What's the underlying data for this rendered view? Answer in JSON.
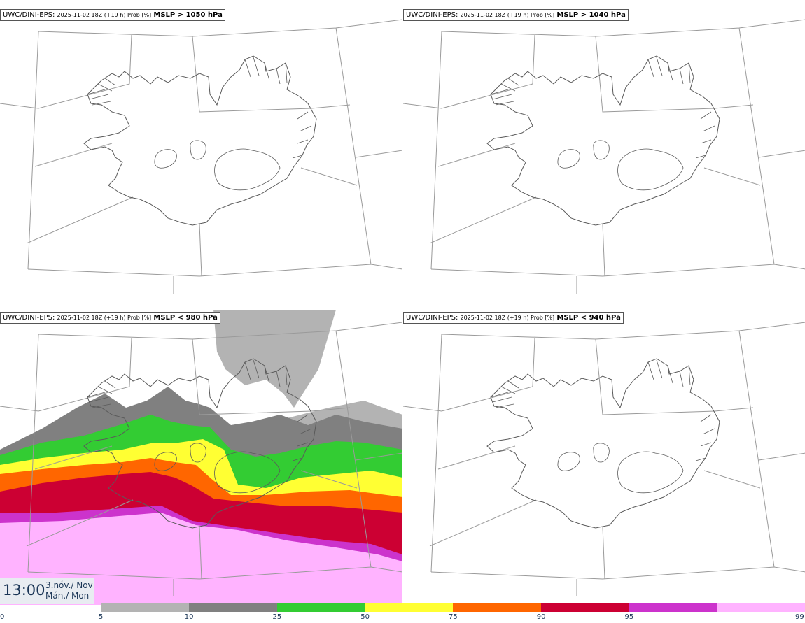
{
  "panels": [
    {
      "model": "UWC/DINI-EPS:",
      "run": "2025-11-02 18Z (+19 h) Prob [%]",
      "field": "MSLP > 1050 hPa"
    },
    {
      "model": "UWC/DINI-EPS:",
      "run": "2025-11-02 18Z (+19 h) Prob [%]",
      "field": "MSLP > 1040 hPa"
    },
    {
      "model": "UWC/DINI-EPS:",
      "run": "2025-11-02 18Z (+19 h) Prob [%]",
      "field": "MSLP < 980 hPa"
    },
    {
      "model": "UWC/DINI-EPS:",
      "run": "2025-11-02 18Z (+19 h) Prob [%]",
      "field": "MSLP < 940 hPa"
    }
  ],
  "valid_time": {
    "time": "13:00",
    "date_line1": "3.nóv./ Nov",
    "date_line2": "Mán./ Mon"
  },
  "colorbar": {
    "ticks": [
      "0",
      "5",
      "10",
      "25",
      "50",
      "75",
      "90",
      "95",
      "99"
    ],
    "colors": [
      "#b3b3b3",
      "#808080",
      "#33cc33",
      "#ffff33",
      "#ff6600",
      "#cc0033",
      "#cc33cc",
      "#ffb3ff"
    ]
  }
}
